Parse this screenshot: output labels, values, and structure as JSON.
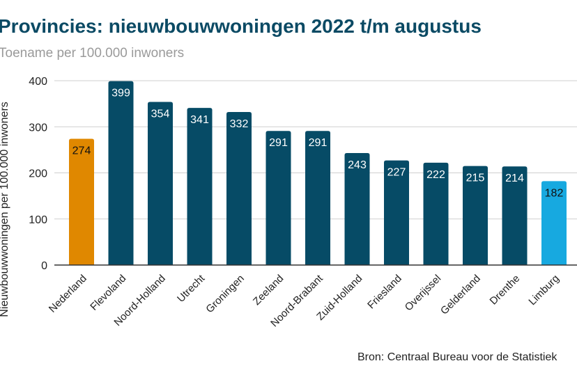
{
  "chart_data": {
    "type": "bar",
    "title": "Provincies: nieuwbouwwoningen 2022 t/m augustus",
    "subtitle": "Toename per 100.000 inwoners",
    "ylabel": "Nieuwbouwwoningen per 100.000 inwoners",
    "xlabel": "",
    "ylim": [
      0,
      400
    ],
    "yticks": [
      0,
      100,
      200,
      300,
      400
    ],
    "grid": true,
    "categories": [
      "Nederland",
      "Flevoland",
      "Noord-Holland",
      "Utrecht",
      "Groningen",
      "Zeeland",
      "Noord-Brabant",
      "Zuid-Holland",
      "Friesland",
      "Overijssel",
      "Gelderland",
      "Drenthe",
      "Limburg"
    ],
    "values": [
      274,
      399,
      354,
      341,
      332,
      291,
      291,
      243,
      227,
      222,
      215,
      214,
      182
    ],
    "colors": [
      "#e08800",
      "#064b66",
      "#064b66",
      "#064b66",
      "#064b66",
      "#064b66",
      "#064b66",
      "#064b66",
      "#064b66",
      "#064b66",
      "#064b66",
      "#064b66",
      "#17a9e0"
    ],
    "label_colors": [
      "#111111",
      "#ffffff",
      "#ffffff",
      "#ffffff",
      "#ffffff",
      "#ffffff",
      "#ffffff",
      "#ffffff",
      "#ffffff",
      "#ffffff",
      "#ffffff",
      "#ffffff",
      "#111111"
    ],
    "source": "Bron: Centraal Bureau voor de Statistiek"
  }
}
